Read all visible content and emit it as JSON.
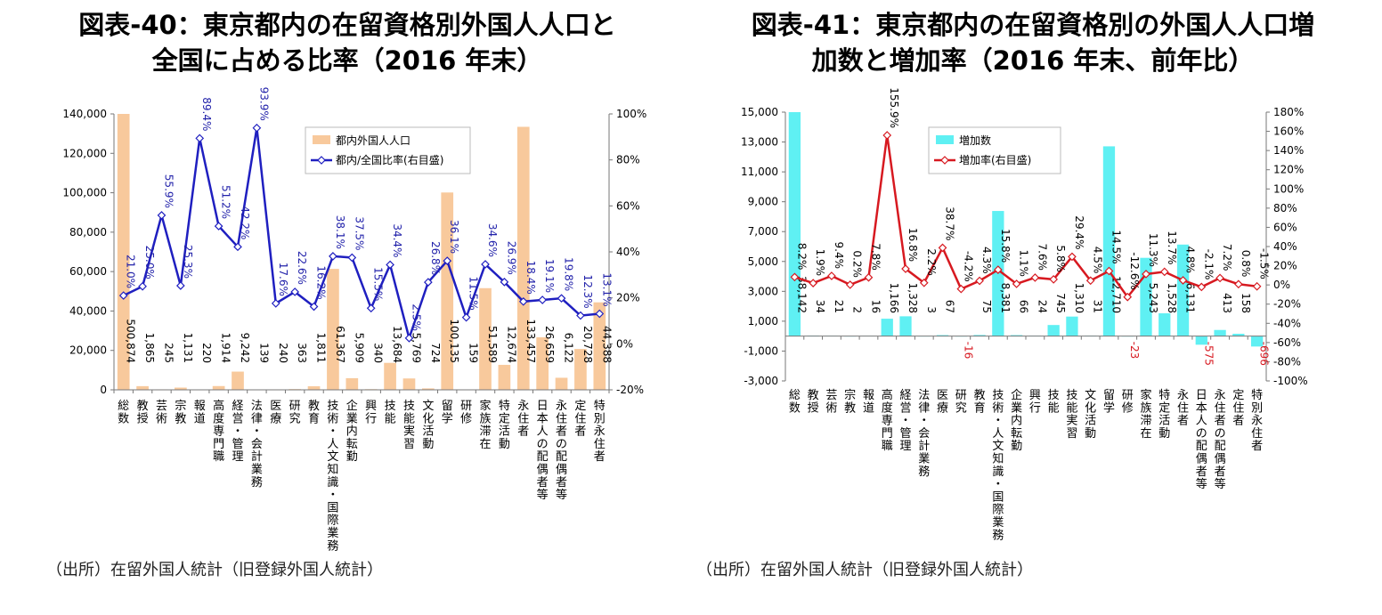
{
  "fig40": {
    "title_line1": "図表-40：東京都内の在留資格別外国人人口と",
    "title_line2": "全国に占める比率（2016 年末）",
    "source": "（出所）在留外国人統計（旧登録外国人統計）",
    "legend_bar": "都内外国人人口",
    "legend_line": "都内/全国比率(右目盛)",
    "bar_color": "#f8c99c",
    "line_color": "#1f1fc0",
    "label_color": "#2222aa",
    "chart_data": {
      "type": "bar+line",
      "categories": [
        "総数",
        "教授",
        "芸術",
        "宗教",
        "報道",
        "高度専門職",
        "経営・管理",
        "法律・会計業務",
        "医療",
        "研究",
        "教育",
        "技術・人文知識・国際業務",
        "企業内転勤",
        "興行",
        "技能",
        "技能実習",
        "文化活動",
        "留学",
        "研修",
        "家族滞在",
        "特定活動",
        "永住者",
        "日本人の配偶者等",
        "永住者の配偶者等",
        "定住者",
        "特別永住者"
      ],
      "bar_values": [
        500874,
        1865,
        245,
        1131,
        220,
        1914,
        9242,
        139,
        240,
        363,
        1811,
        61367,
        5909,
        340,
        13684,
        5769,
        724,
        100135,
        159,
        51589,
        12674,
        133457,
        26659,
        6122,
        20728,
        44388
      ],
      "bar_labels": [
        "500,874",
        "1,865",
        "245",
        "1,131",
        "220",
        "1,914",
        "9,242",
        "139",
        "240",
        "363",
        "1,811",
        "61,367",
        "5,909",
        "340",
        "13,684",
        "5,769",
        "724",
        "100,135",
        "159",
        "51,589",
        "12,674",
        "133,457",
        "26,659",
        "6,122",
        "20,728",
        "44,388"
      ],
      "line_values": [
        21.0,
        25.0,
        55.9,
        25.3,
        89.4,
        51.2,
        42.2,
        93.9,
        17.6,
        22.6,
        16.2,
        38.1,
        37.5,
        15.5,
        34.4,
        2.5,
        26.8,
        36.1,
        11.5,
        34.6,
        26.9,
        18.4,
        19.1,
        19.8,
        12.3,
        13.1
      ],
      "line_labels": [
        "21.0%",
        "25.0%",
        "55.9%",
        "25.3%",
        "89.4%",
        "51.2%",
        "42.2%",
        "93.9%",
        "17.6%",
        "22.6%",
        "16.2%",
        "38.1%",
        "37.5%",
        "15.5%",
        "34.4%",
        "2.5%",
        "26.8%",
        "36.1%",
        "11.5%",
        "34.6%",
        "26.9%",
        "18.4%",
        "19.1%",
        "19.8%",
        "12.3%",
        "13.1%"
      ],
      "y_left": {
        "min": 0,
        "max": 140000,
        "step": 20000,
        "ticks": [
          "0",
          "20,000",
          "40,000",
          "60,000",
          "80,000",
          "100,000",
          "120,000",
          "140,000"
        ]
      },
      "y_right": {
        "min": -20,
        "max": 100,
        "step": 20,
        "ticks": [
          "-20%",
          "0%",
          "20%",
          "40%",
          "60%",
          "80%",
          "100%"
        ]
      },
      "legend_position": "top-right"
    }
  },
  "fig41": {
    "title_line1": "図表-41：東京都内の在留資格別の外国人人口増",
    "title_line2": "加数と増加率（2016 年末、前年比）",
    "source": "（出所）在留外国人統計（旧登録外国人統計）",
    "legend_bar": "増加数",
    "legend_line": "増加率(右目盛)",
    "bar_color": "#5ff0f3",
    "line_color": "#d71920",
    "neg_label_color": "#d71920",
    "chart_data": {
      "type": "bar+line",
      "categories": [
        "総数",
        "教授",
        "芸術",
        "宗教",
        "報道",
        "高度専門職",
        "経営・管理",
        "法律・会計業務",
        "医療",
        "研究",
        "教育",
        "技術・人文知識・国際業務",
        "企業内転勤",
        "興行",
        "技能",
        "技能実習",
        "文化活動",
        "留学",
        "研修",
        "家族滞在",
        "特定活動",
        "永住者",
        "日本人の配偶者等",
        "永住者の配偶者等",
        "定住者",
        "特別永住者"
      ],
      "bar_values": [
        38142,
        34,
        21,
        2,
        16,
        1166,
        1328,
        3,
        67,
        -16,
        75,
        8381,
        66,
        24,
        745,
        1310,
        31,
        12710,
        -23,
        5243,
        1528,
        6131,
        -575,
        413,
        158,
        -696
      ],
      "bar_labels": [
        "38,142",
        "34",
        "21",
        "2",
        "16",
        "1,166",
        "1,328",
        "3",
        "67",
        "-16",
        "75",
        "8,381",
        "66",
        "24",
        "745",
        "1,310",
        "31",
        "12,710",
        "-23",
        "5,243",
        "1,528",
        "6,131",
        "-575",
        "413",
        "158",
        "-696"
      ],
      "line_values": [
        8.2,
        1.9,
        9.4,
        0.2,
        7.8,
        155.9,
        16.8,
        2.2,
        38.7,
        -4.2,
        4.3,
        15.8,
        1.1,
        7.6,
        5.8,
        29.4,
        4.5,
        14.5,
        -12.6,
        11.3,
        13.7,
        4.8,
        -2.1,
        7.2,
        0.8,
        -1.5
      ],
      "line_labels": [
        "8.2%",
        "1.9%",
        "9.4%",
        "0.2%",
        "7.8%",
        "155.9%",
        "16.8%",
        "2.2%",
        "38.7%",
        "-4.2%",
        "4.3%",
        "15.8%",
        "1.1%",
        "7.6%",
        "5.8%",
        "29.4%",
        "4.5%",
        "14.5%",
        "-12.6%",
        "11.3%",
        "13.7%",
        "4.8%",
        "-2.1%",
        "7.2%",
        "0.8%",
        "-1.5%"
      ],
      "y_left": {
        "min": -3000,
        "max": 15000,
        "step": 2000,
        "ticks": [
          "-3,000",
          "-1,000",
          "1,000",
          "3,000",
          "5,000",
          "7,000",
          "9,000",
          "11,000",
          "13,000",
          "15,000"
        ]
      },
      "y_right": {
        "min": -100,
        "max": 180,
        "step": 20,
        "ticks": [
          "-100%",
          "-80%",
          "-60%",
          "-40%",
          "-20%",
          "0%",
          "20%",
          "40%",
          "60%",
          "80%",
          "100%",
          "120%",
          "140%",
          "160%",
          "180%"
        ]
      },
      "legend_position": "top-left"
    }
  }
}
